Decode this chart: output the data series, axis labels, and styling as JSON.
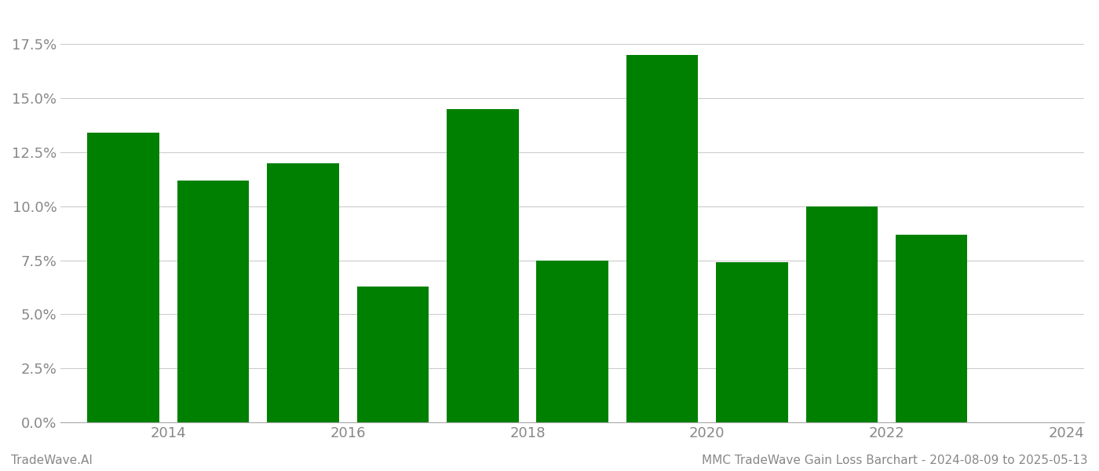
{
  "bar_positions": [
    2013.5,
    2014.5,
    2015.5,
    2016.5,
    2017.5,
    2018.5,
    2019.5,
    2020.5,
    2021.5,
    2022.5
  ],
  "bar_values": [
    0.134,
    0.112,
    0.12,
    0.063,
    0.145,
    0.075,
    0.17,
    0.074,
    0.1,
    0.087
  ],
  "bar_width": 0.8,
  "bar_color": "#008000",
  "background_color": "#ffffff",
  "footer_left": "TradeWave.AI",
  "footer_right": "MMC TradeWave Gain Loss Barchart - 2024-08-09 to 2025-05-13",
  "ylim": [
    0,
    0.19
  ],
  "yticks": [
    0.0,
    0.025,
    0.05,
    0.075,
    0.1,
    0.125,
    0.15,
    0.175
  ],
  "xticks": [
    2014,
    2016,
    2018,
    2020,
    2022,
    2024
  ],
  "xtick_labels": [
    "2014",
    "2016",
    "2018",
    "2020",
    "2022",
    "2024"
  ],
  "xlim": [
    2012.8,
    2024.2
  ],
  "grid_color": "#cccccc",
  "axis_color": "#aaaaaa",
  "tick_color": "#888888",
  "tick_fontsize": 13,
  "footer_fontsize": 11
}
